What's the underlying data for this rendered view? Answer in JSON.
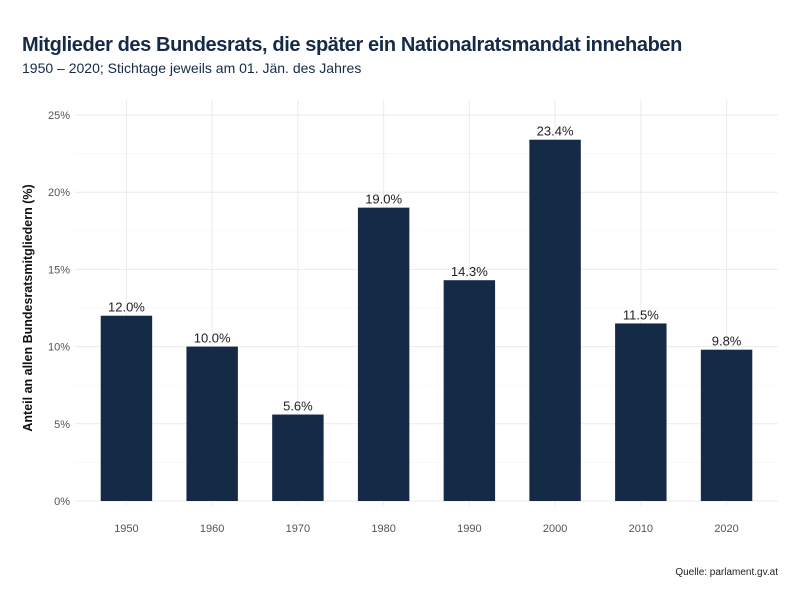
{
  "chart_data": {
    "type": "bar",
    "title": "Mitglieder des Bundesrats, die später ein Nationalratsmandat innehaben",
    "subtitle": "1950 – 2020; Stichtage jeweils am 01. Jän. des Jahres",
    "xlabel": "",
    "ylabel": "Anteil an allen Bundesratsmitgliedern (%)",
    "caption": "Quelle: parlament.gv.at",
    "categories": [
      "1950",
      "1960",
      "1970",
      "1980",
      "1990",
      "2000",
      "2010",
      "2020"
    ],
    "values": [
      12.0,
      10.0,
      5.6,
      19.0,
      14.3,
      23.4,
      11.5,
      9.8
    ],
    "data_labels": [
      "12.0%",
      "10.0%",
      "5.6%",
      "19.0%",
      "14.3%",
      "23.4%",
      "11.5%",
      "9.8%"
    ],
    "ylim": [
      0,
      25
    ],
    "yticks": [
      0,
      5,
      10,
      15,
      20,
      25
    ],
    "ytick_labels": [
      "0%",
      "5%",
      "10%",
      "15%",
      "20%",
      "25%"
    ],
    "grid": true,
    "bar_color": "#152a47"
  }
}
